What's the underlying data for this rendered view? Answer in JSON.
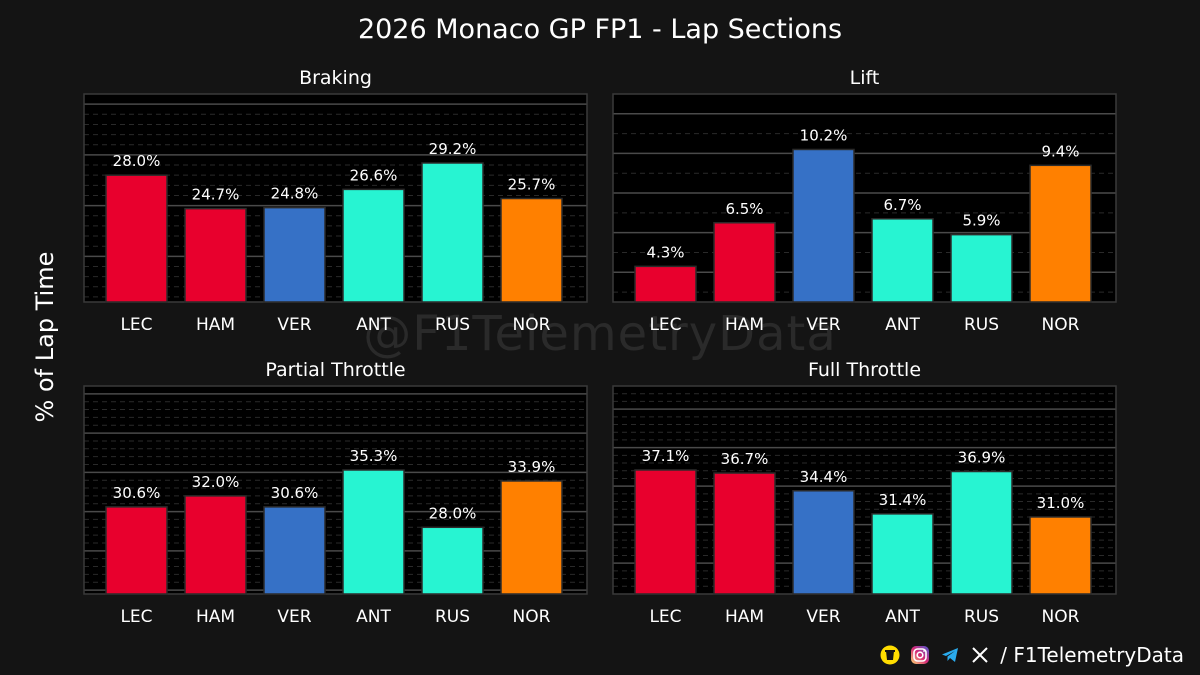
{
  "title": "2026 Monaco GP FP1 - Lap Sections",
  "ylabel": "% of Lap Time",
  "watermark": "@F1TelemetryData",
  "footer": {
    "handle_text": "/ F1TelemetryData"
  },
  "colors": {
    "LEC": "#e8002d",
    "HAM": "#e8002d",
    "VER": "#3671c6",
    "ANT": "#27f4d2",
    "RUS": "#27f4d2",
    "NOR": "#ff8000",
    "background": "#141414",
    "plot_background": "#000000"
  },
  "chart_data": [
    {
      "type": "bar",
      "title": "Braking",
      "categories": [
        "LEC",
        "HAM",
        "VER",
        "ANT",
        "RUS",
        "NOR"
      ],
      "values": [
        28.0,
        24.7,
        24.8,
        26.6,
        29.2,
        25.7
      ],
      "labels": [
        "28.0%",
        "24.7%",
        "24.8%",
        "26.6%",
        "29.2%",
        "25.7%"
      ],
      "ylim": [
        15.5,
        36
      ],
      "grid": true
    },
    {
      "type": "bar",
      "title": "Lift",
      "categories": [
        "LEC",
        "HAM",
        "VER",
        "ANT",
        "RUS",
        "NOR"
      ],
      "values": [
        4.3,
        6.5,
        10.2,
        6.7,
        5.9,
        9.4
      ],
      "labels": [
        "4.3%",
        "6.5%",
        "10.2%",
        "6.7%",
        "5.9%",
        "9.4%"
      ],
      "ylim": [
        2.5,
        13
      ],
      "grid": true
    },
    {
      "type": "bar",
      "title": "Partial Throttle",
      "categories": [
        "LEC",
        "HAM",
        "VER",
        "ANT",
        "RUS",
        "NOR"
      ],
      "values": [
        30.6,
        32.0,
        30.6,
        35.3,
        28.0,
        33.9
      ],
      "labels": [
        "30.6%",
        "32.0%",
        "30.6%",
        "35.3%",
        "28.0%",
        "33.9%"
      ],
      "ylim": [
        19.5,
        46
      ],
      "grid": true
    },
    {
      "type": "bar",
      "title": "Full Throttle",
      "categories": [
        "LEC",
        "HAM",
        "VER",
        "ANT",
        "RUS",
        "NOR"
      ],
      "values": [
        37.1,
        36.7,
        34.4,
        31.4,
        36.9,
        31.0
      ],
      "labels": [
        "37.1%",
        "36.7%",
        "34.4%",
        "31.4%",
        "36.9%",
        "31.0%"
      ],
      "ylim": [
        21,
        48
      ],
      "grid": true
    }
  ]
}
